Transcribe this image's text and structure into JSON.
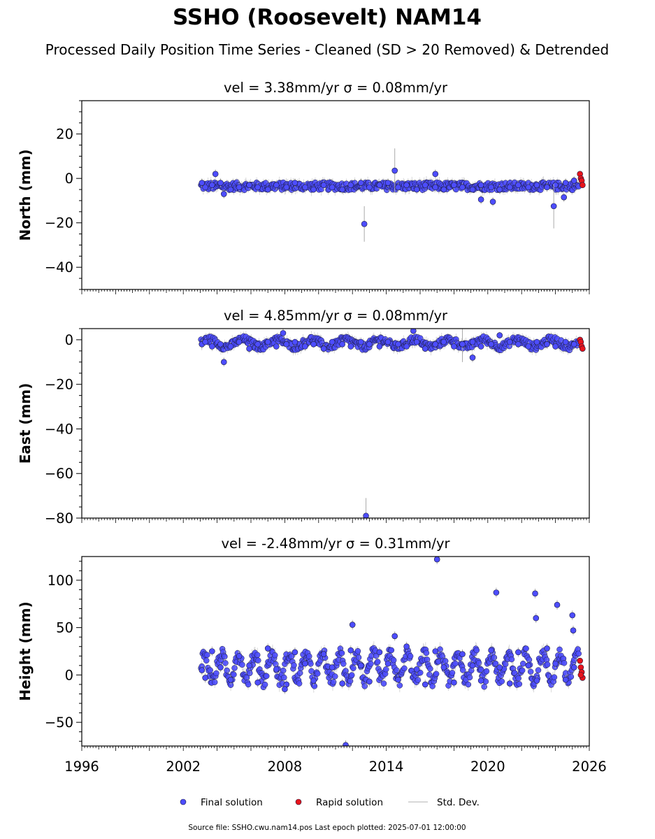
{
  "title": "SSHO (Roosevelt) NAM14",
  "subtitle": "Processed Daily Position Time Series - Cleaned (SD > 20 Removed) & Detrended",
  "colors": {
    "final": "#4d4dff",
    "rapid": "#e8141c",
    "stddev": "#aaaaaa",
    "edge": "#1a1a3a"
  },
  "legend": {
    "placement": "bottom-center",
    "final_label": "Final solution",
    "rapid_label": "Rapid solution",
    "stddev_label": "Std. Dev."
  },
  "footer": "Source file: SSHO.cwu.nam14.pos  Last epoch plotted: 2025-07-01 12:00:00",
  "chart_data": [
    {
      "type": "scatter",
      "component": "north",
      "title": "vel = 3.38mm/yr   σ = 0.08mm/yr",
      "xlabel": "",
      "ylabel": "North (mm)",
      "xlim": [
        1996,
        2026
      ],
      "ylim": [
        -50,
        35
      ],
      "yticks": [
        20,
        0,
        -20,
        -40
      ],
      "grid": false,
      "series": [
        {
          "kind": "final",
          "x": [
            2003.1,
            2003.3,
            2003.7,
            2004.2,
            2004.8,
            2005.3,
            2005.9,
            2006.4,
            2007.0,
            2007.5,
            2008.1,
            2008.6,
            2009.2,
            2009.7,
            2010.3,
            2010.8,
            2011.4,
            2011.9,
            2012.5,
            2013.0,
            2013.6,
            2014.1,
            2014.7,
            2015.2,
            2015.8,
            2016.3,
            2016.9,
            2017.4,
            2018.0,
            2018.5,
            2019.1,
            2019.6,
            2020.2,
            2020.7,
            2021.3,
            2021.8,
            2022.4,
            2022.9,
            2023.5,
            2024.0,
            2024.6,
            2025.1,
            2003.9,
            2012.7,
            2014.5,
            2020.3,
            2023.9,
            2024.5,
            2016.9,
            2019.6,
            2004.4
          ],
          "y": [
            -2,
            -4,
            -3,
            -2,
            -5,
            -4,
            -3,
            -4,
            -5,
            -3,
            -4,
            -2,
            -4,
            -5,
            -3,
            -4,
            -5,
            -3,
            -2,
            -4,
            -3,
            -2,
            -4,
            -3,
            -5,
            -3,
            -4,
            -5,
            -3,
            -4,
            -5,
            -3,
            -4,
            -5,
            -4,
            -3,
            -4,
            -3,
            -4,
            -3,
            -2,
            -1,
            2,
            -20.5,
            3.5,
            -10.5,
            -12.5,
            -8.5,
            2,
            -9.5,
            -7
          ],
          "err": [
            2,
            1.5,
            2,
            2,
            1.5,
            2,
            1.5,
            2,
            1.5,
            2,
            1.5,
            2,
            2,
            1.5,
            2,
            1.5,
            2,
            1.5,
            2,
            2,
            1.5,
            2,
            2,
            1.5,
            2,
            1.5,
            2,
            1.5,
            2,
            2,
            1.5,
            2,
            1.5,
            2,
            1.5,
            2,
            2,
            1.5,
            2,
            1.5,
            2,
            2,
            2,
            8,
            10,
            2,
            10,
            2,
            2,
            2,
            2
          ]
        },
        {
          "kind": "rapid",
          "x": [
            2025.45,
            2025.5,
            2025.55,
            2025.6
          ],
          "y": [
            2,
            0,
            -1,
            -3
          ]
        }
      ]
    },
    {
      "type": "scatter",
      "component": "east",
      "title": "vel = 4.85mm/yr   σ = 0.08mm/yr",
      "xlabel": "",
      "ylabel": "East (mm)",
      "xlim": [
        1996,
        2026
      ],
      "ylim": [
        -80,
        5
      ],
      "yticks": [
        0,
        -20,
        -40,
        -60,
        -80
      ],
      "grid": false,
      "series": [
        {
          "kind": "final",
          "x": [
            2003.1,
            2003.3,
            2003.7,
            2004.2,
            2004.8,
            2005.3,
            2005.9,
            2006.4,
            2007.0,
            2007.5,
            2008.1,
            2008.6,
            2009.2,
            2009.7,
            2010.3,
            2010.8,
            2011.4,
            2011.9,
            2012.5,
            2013.0,
            2013.6,
            2014.1,
            2014.7,
            2015.2,
            2015.8,
            2016.3,
            2016.9,
            2017.4,
            2018.0,
            2018.5,
            2019.1,
            2019.6,
            2020.2,
            2020.7,
            2021.3,
            2021.8,
            2022.4,
            2022.9,
            2023.5,
            2024.0,
            2024.6,
            2025.1,
            2004.4,
            2012.8,
            2015.6,
            2007.9,
            2019.1
          ],
          "y": [
            -2,
            -1,
            -3,
            -2,
            -3,
            -1,
            -4,
            -2,
            -1,
            -3,
            -2,
            -1,
            -3,
            -2,
            -4,
            -1,
            -2,
            -3,
            -1,
            -2,
            -3,
            -1,
            -2,
            -3,
            -1,
            -4,
            -2,
            -1,
            -3,
            -2,
            -1,
            -3,
            -2,
            2,
            -1,
            -2,
            -3,
            -1,
            -2,
            -3,
            -1,
            -2,
            -10,
            -79,
            4,
            3,
            -8
          ],
          "err": [
            2,
            1.5,
            2,
            1.5,
            2,
            1.5,
            2,
            1.5,
            2,
            1.5,
            2,
            1.5,
            2,
            1.5,
            2,
            1.5,
            2,
            1.5,
            2,
            1.5,
            2,
            1.5,
            2,
            1.5,
            2,
            1.5,
            2,
            1.5,
            2,
            8,
            2,
            1.5,
            2,
            1.5,
            2,
            1.5,
            2,
            1.5,
            2,
            1.5,
            2,
            2,
            2,
            8,
            2,
            2,
            2
          ]
        },
        {
          "kind": "rapid",
          "x": [
            2025.45,
            2025.5,
            2025.55,
            2025.6
          ],
          "y": [
            0,
            -1,
            -3,
            -4
          ]
        }
      ]
    },
    {
      "type": "scatter",
      "component": "height",
      "title": "vel = -2.48mm/yr   σ = 0.31mm/yr",
      "xlabel": "",
      "ylabel": "Height (mm)",
      "xlim": [
        1996,
        2026
      ],
      "ylim": [
        -75,
        125
      ],
      "yticks": [
        100,
        50,
        0,
        -50
      ],
      "xticks": [
        1996,
        2002,
        2008,
        2014,
        2020,
        2026
      ],
      "grid": false,
      "series": [
        {
          "kind": "final",
          "x": [
            2003.1,
            2003.3,
            2003.7,
            2004.2,
            2004.8,
            2005.3,
            2005.9,
            2006.4,
            2007.0,
            2007.5,
            2008.1,
            2008.6,
            2009.2,
            2009.7,
            2010.3,
            2010.8,
            2011.4,
            2011.9,
            2012.5,
            2013.0,
            2013.6,
            2014.1,
            2014.7,
            2015.2,
            2015.8,
            2016.3,
            2016.9,
            2017.4,
            2018.0,
            2018.5,
            2019.1,
            2019.6,
            2020.2,
            2020.7,
            2021.3,
            2021.8,
            2022.4,
            2022.9,
            2023.5,
            2024.0,
            2024.6,
            2025.1,
            2011.6,
            2017.0,
            2020.5,
            2022.8,
            2024.1,
            2025.0,
            2025.05,
            2022.85,
            2012.0,
            2014.5,
            2008.0
          ],
          "y": [
            5,
            -3,
            25,
            8,
            -5,
            20,
            10,
            -8,
            28,
            6,
            -10,
            24,
            12,
            -6,
            22,
            8,
            -9,
            26,
            10,
            -7,
            24,
            12,
            -5,
            30,
            6,
            -10,
            25,
            8,
            -8,
            22,
            10,
            -6,
            26,
            8,
            -9,
            24,
            10,
            -6,
            28,
            12,
            -5,
            8,
            -74,
            122,
            87,
            86,
            74,
            63,
            47,
            60,
            53,
            41,
            -15
          ],
          "err": [
            5,
            5,
            5,
            5,
            5,
            5,
            5,
            5,
            5,
            5,
            5,
            5,
            5,
            5,
            5,
            5,
            5,
            5,
            5,
            5,
            5,
            5,
            5,
            5,
            5,
            5,
            5,
            5,
            5,
            5,
            5,
            5,
            5,
            5,
            5,
            5,
            5,
            5,
            5,
            5,
            5,
            5,
            5,
            5,
            5,
            5,
            5,
            5,
            5,
            5,
            5,
            5,
            5
          ]
        },
        {
          "kind": "rapid",
          "x": [
            2025.45,
            2025.5,
            2025.55,
            2025.6,
            2025.5
          ],
          "y": [
            15,
            8,
            3,
            -3,
            0
          ]
        }
      ]
    }
  ]
}
